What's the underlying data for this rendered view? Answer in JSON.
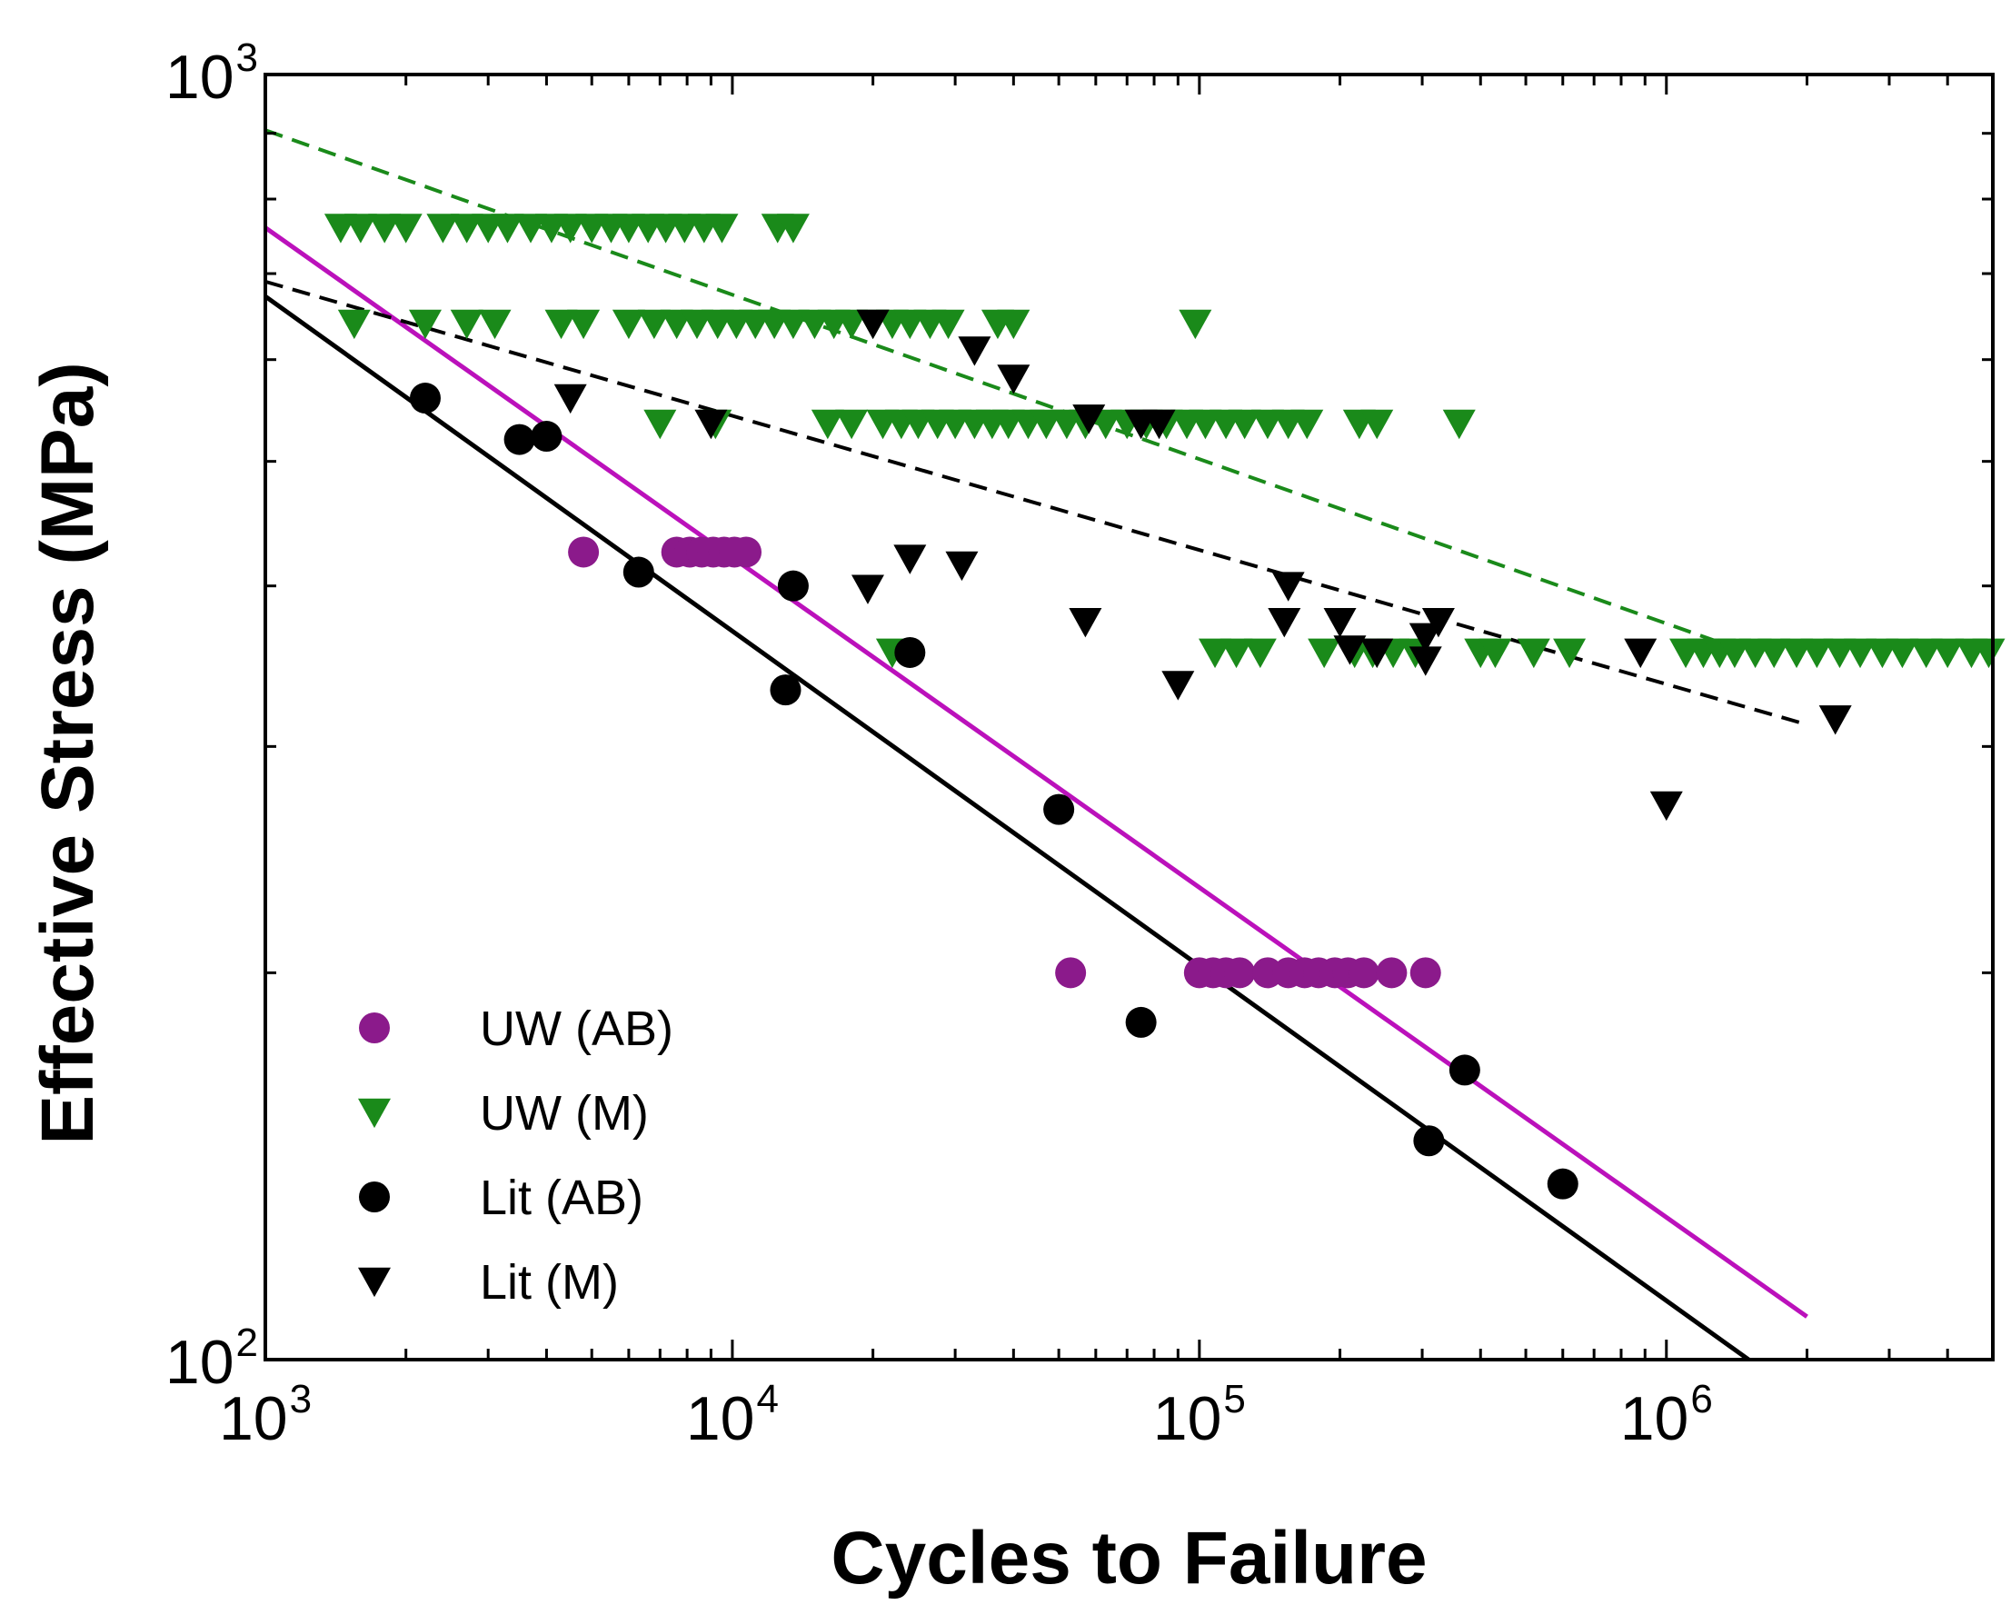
{
  "chart_data": {
    "type": "scatter",
    "xlabel": "Cycles to Failure",
    "ylabel": "Effective Stress  (MPa)",
    "xscale": "log",
    "yscale": "log",
    "xlim": [
      1000,
      5000000
    ],
    "ylim": [
      100,
      1000
    ],
    "grid": false,
    "legend_position": "bottom-left",
    "x_ticks": [
      {
        "base": "10",
        "exp": "3",
        "value": 1000
      },
      {
        "base": "10",
        "exp": "4",
        "value": 10000
      },
      {
        "base": "10",
        "exp": "5",
        "value": 100000
      },
      {
        "base": "10",
        "exp": "6",
        "value": 1000000
      }
    ],
    "y_ticks": [
      {
        "base": "10",
        "exp": "2",
        "value": 100
      },
      {
        "base": "10",
        "exp": "3",
        "value": 1000
      }
    ],
    "colors": {
      "uw_ab": "#8b1a8b",
      "uw_m": "#1a8a1a",
      "lit": "#000000",
      "fit_uw_ab": "#bb11bb",
      "fit_uw_m": "#1a8a1a",
      "fit_lit": "#000000"
    },
    "series": [
      {
        "name": "UW (AB)",
        "marker": "circle",
        "color": "#8b1a8b",
        "points": [
          [
            4800,
            425
          ],
          [
            7600,
            425
          ],
          [
            8100,
            425
          ],
          [
            8600,
            425
          ],
          [
            9100,
            425
          ],
          [
            9600,
            425
          ],
          [
            10100,
            425
          ],
          [
            10700,
            425
          ],
          [
            53000,
            200
          ],
          [
            100000,
            200
          ],
          [
            107000,
            200
          ],
          [
            114000,
            200
          ],
          [
            122000,
            200
          ],
          [
            140000,
            200
          ],
          [
            155000,
            200
          ],
          [
            168000,
            200
          ],
          [
            180000,
            200
          ],
          [
            195000,
            200
          ],
          [
            208000,
            200
          ],
          [
            225000,
            200
          ],
          [
            258000,
            200
          ],
          [
            305000,
            200
          ]
        ]
      },
      {
        "name": "UW (M)",
        "marker": "triangle-down",
        "color": "#1a8a1a",
        "points": [
          [
            1450,
            760
          ],
          [
            1600,
            760
          ],
          [
            1800,
            760
          ],
          [
            2000,
            760
          ],
          [
            2400,
            760
          ],
          [
            2700,
            760
          ],
          [
            3000,
            760
          ],
          [
            3300,
            760
          ],
          [
            3700,
            760
          ],
          [
            4100,
            760
          ],
          [
            4500,
            760
          ],
          [
            5000,
            760
          ],
          [
            5500,
            760
          ],
          [
            6000,
            760
          ],
          [
            6600,
            760
          ],
          [
            7200,
            760
          ],
          [
            7900,
            760
          ],
          [
            8700,
            760
          ],
          [
            9500,
            760
          ],
          [
            12500,
            760
          ],
          [
            13500,
            760
          ],
          [
            1550,
            640
          ],
          [
            2200,
            640
          ],
          [
            2700,
            640
          ],
          [
            3100,
            640
          ],
          [
            4300,
            640
          ],
          [
            4800,
            640
          ],
          [
            6000,
            640
          ],
          [
            6800,
            640
          ],
          [
            7600,
            640
          ],
          [
            8400,
            640
          ],
          [
            9300,
            640
          ],
          [
            10200,
            640
          ],
          [
            11200,
            640
          ],
          [
            12300,
            640
          ],
          [
            13500,
            640
          ],
          [
            15000,
            640
          ],
          [
            16500,
            640
          ],
          [
            18000,
            640
          ],
          [
            20000,
            640
          ],
          [
            22000,
            640
          ],
          [
            24000,
            640
          ],
          [
            26500,
            640
          ],
          [
            29000,
            640
          ],
          [
            37000,
            640
          ],
          [
            40000,
            640
          ],
          [
            98000,
            640
          ],
          [
            7000,
            535
          ],
          [
            9200,
            535
          ],
          [
            16000,
            535
          ],
          [
            18000,
            535
          ],
          [
            21000,
            535
          ],
          [
            23000,
            535
          ],
          [
            25000,
            535
          ],
          [
            27500,
            535
          ],
          [
            30000,
            535
          ],
          [
            33000,
            535
          ],
          [
            36000,
            535
          ],
          [
            39000,
            535
          ],
          [
            43000,
            535
          ],
          [
            47000,
            535
          ],
          [
            52000,
            535
          ],
          [
            57000,
            535
          ],
          [
            63000,
            535
          ],
          [
            70000,
            535
          ],
          [
            77000,
            535
          ],
          [
            85000,
            535
          ],
          [
            94000,
            535
          ],
          [
            103000,
            535
          ],
          [
            114000,
            535
          ],
          [
            125000,
            535
          ],
          [
            140000,
            535
          ],
          [
            155000,
            535
          ],
          [
            170000,
            535
          ],
          [
            220000,
            535
          ],
          [
            240000,
            535
          ],
          [
            360000,
            535
          ],
          [
            22000,
            355
          ],
          [
            108000,
            355
          ],
          [
            120000,
            355
          ],
          [
            135000,
            355
          ],
          [
            185000,
            355
          ],
          [
            215000,
            355
          ],
          [
            235000,
            355
          ],
          [
            260000,
            355
          ],
          [
            290000,
            355
          ],
          [
            400000,
            355
          ],
          [
            430000,
            355
          ],
          [
            520000,
            355
          ],
          [
            620000,
            355
          ],
          [
            1100000,
            355
          ],
          [
            1200000,
            355
          ],
          [
            1300000,
            355
          ],
          [
            1400000,
            355
          ],
          [
            1550000,
            355
          ],
          [
            1700000,
            355
          ],
          [
            1900000,
            355
          ],
          [
            2100000,
            355
          ],
          [
            2350000,
            355
          ],
          [
            2600000,
            355
          ],
          [
            2900000,
            355
          ],
          [
            3200000,
            355
          ],
          [
            3600000,
            355
          ],
          [
            4000000,
            355
          ],
          [
            4500000,
            355
          ],
          [
            4900000,
            355
          ]
        ]
      },
      {
        "name": "Lit (AB)",
        "marker": "circle",
        "color": "#000000",
        "points": [
          [
            2200,
            560
          ],
          [
            3500,
            520
          ],
          [
            4000,
            523
          ],
          [
            6300,
            410
          ],
          [
            13500,
            400
          ],
          [
            13000,
            332
          ],
          [
            24000,
            355
          ],
          [
            50000,
            268
          ],
          [
            75000,
            183
          ],
          [
            370000,
            168
          ],
          [
            310000,
            148
          ],
          [
            600000,
            137
          ]
        ]
      },
      {
        "name": "Lit (M)",
        "marker": "triangle-down",
        "color": "#000000",
        "points": [
          [
            20000,
            640
          ],
          [
            33000,
            610
          ],
          [
            40000,
            580
          ],
          [
            4500,
            560
          ],
          [
            9000,
            535
          ],
          [
            58000,
            540
          ],
          [
            75000,
            535
          ],
          [
            82000,
            535
          ],
          [
            24000,
            420
          ],
          [
            31000,
            415
          ],
          [
            19500,
            398
          ],
          [
            57000,
            375
          ],
          [
            155000,
            400
          ],
          [
            152000,
            375
          ],
          [
            200000,
            375
          ],
          [
            305000,
            365
          ],
          [
            325000,
            375
          ],
          [
            210000,
            357
          ],
          [
            240000,
            355
          ],
          [
            305000,
            350
          ],
          [
            90000,
            335
          ],
          [
            880000,
            355
          ],
          [
            2300000,
            315
          ],
          [
            1000000,
            270
          ]
        ]
      }
    ],
    "fit_lines": [
      {
        "series": "UW (AB)",
        "style": "solid",
        "color": "#bb11bb",
        "from": [
          1000,
          760
        ],
        "to": [
          2000000,
          108
        ]
      },
      {
        "series": "Lit (AB)",
        "style": "solid",
        "color": "#000000",
        "from": [
          1000,
          672
        ],
        "to": [
          1500000,
          100
        ]
      },
      {
        "series": "UW (M)",
        "style": "dashed",
        "color": "#1a8a1a",
        "from": [
          1000,
          905
        ],
        "to": [
          1500000,
          355
        ]
      },
      {
        "series": "Lit (M)",
        "style": "dashed",
        "color": "#000000",
        "from": [
          1000,
          690
        ],
        "to": [
          2000000,
          312
        ]
      }
    ]
  }
}
